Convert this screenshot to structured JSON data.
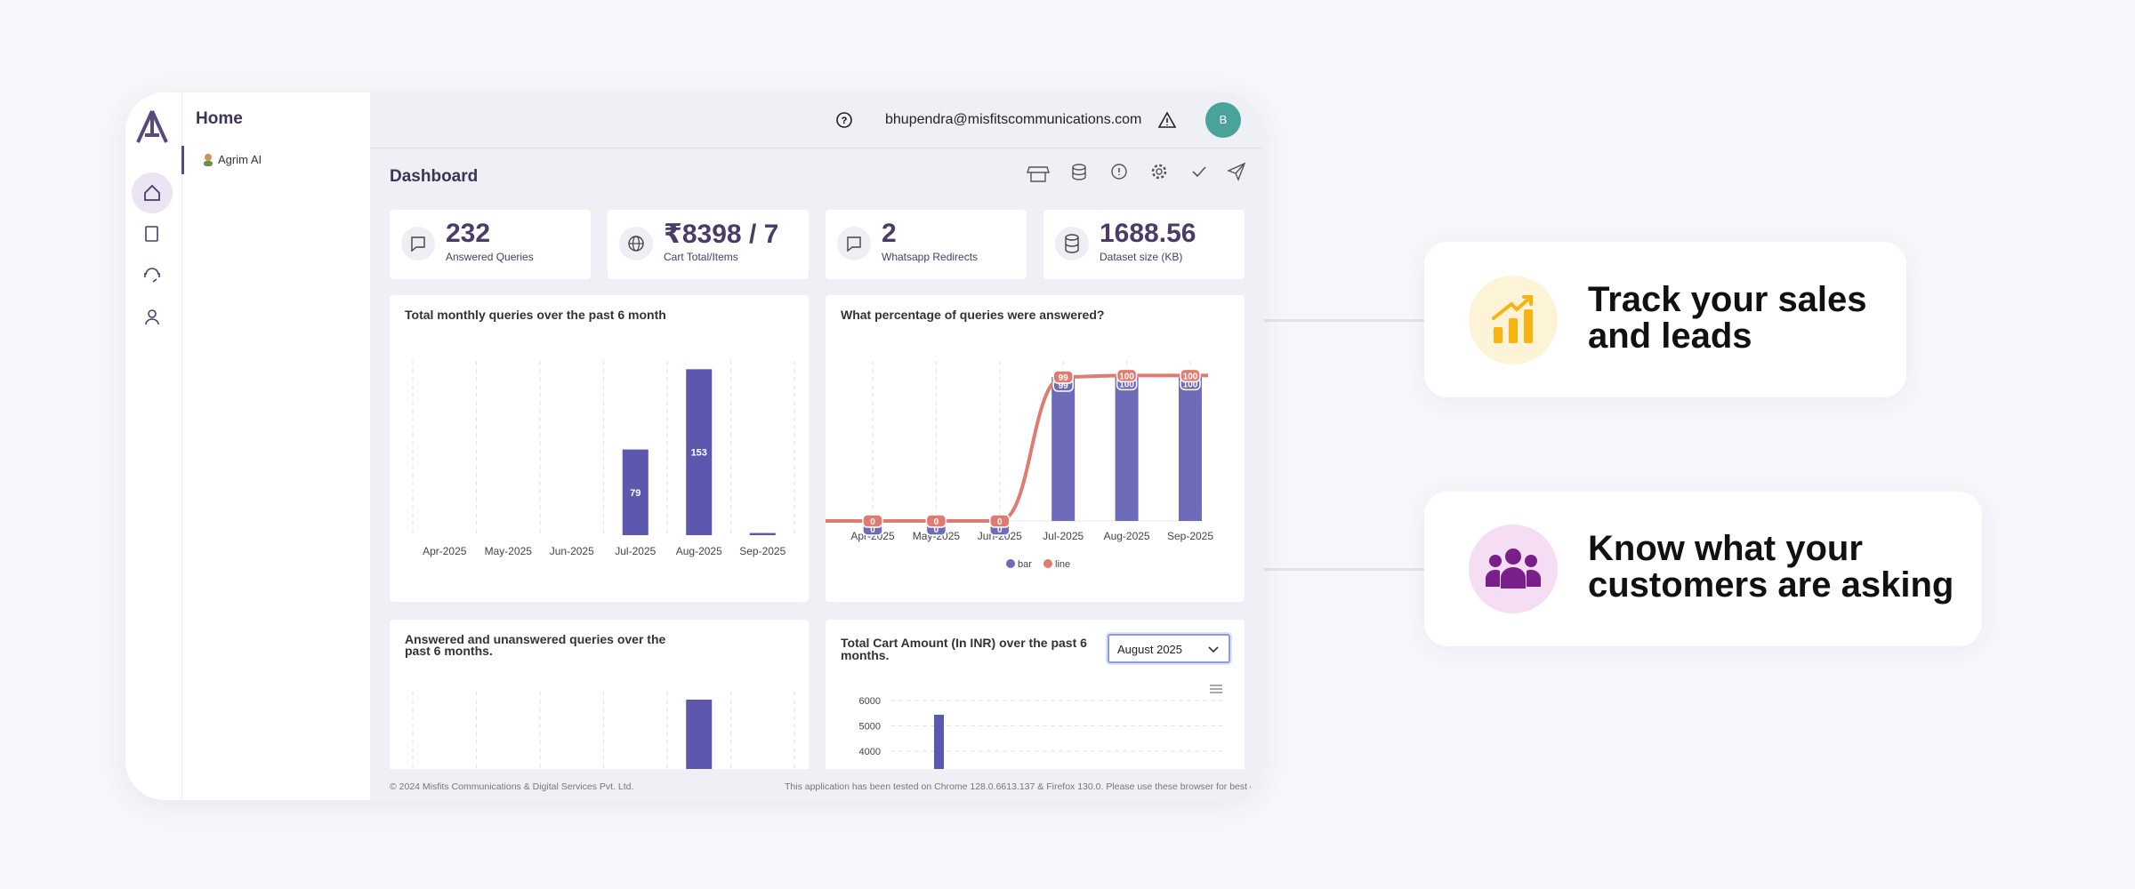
{
  "sidebar": {
    "title": "Home",
    "items": [
      "Agrim AI"
    ]
  },
  "header": {
    "email": "bhupendra@misfitscommunications.com",
    "avatar": "B"
  },
  "dashboard": {
    "title": "Dashboard",
    "stats": [
      {
        "value": "232",
        "label": "Answered Queries"
      },
      {
        "value": "₹8398 / 7",
        "label": "Cart Total/Items"
      },
      {
        "value": "2",
        "label": "Whatsapp Redirects"
      },
      {
        "value": "1688.56",
        "label": "Dataset size (KB)"
      }
    ],
    "charts": [
      {
        "type": "bar",
        "title": "Total monthly queries over the past 6 month",
        "categories": [
          "Apr-2025",
          "May-2025",
          "Jun-2025",
          "Jul-2025",
          "Aug-2025",
          "Sep-2025"
        ],
        "values": [
          0,
          0,
          0,
          79,
          153,
          2
        ],
        "color": "#5b58ae"
      },
      {
        "type": "bar_line",
        "title": "What percentage of queries were answered?",
        "categories": [
          "Apr-2025",
          "May-2025",
          "Jun-2025",
          "Jul-2025",
          "Aug-2025",
          "Sep-2025"
        ],
        "series": [
          {
            "name": "bar",
            "color": "#6e6bb9",
            "values": [
              0,
              0,
              0,
              99,
              100,
              100
            ]
          },
          {
            "name": "line",
            "color": "#e07b72",
            "values": [
              0,
              0,
              0,
              99,
              100,
              100
            ]
          }
        ]
      },
      {
        "type": "bar",
        "title": "Answered and unanswered queries over the past 6 months.",
        "values": [
          0,
          0,
          0,
          0,
          150,
          0
        ],
        "color": "#5b58ae"
      },
      {
        "type": "cart",
        "title": "Total Cart Amount (In INR) over the past 6 months.",
        "selected": "August 2025",
        "values": [
          5440
        ],
        "color": "#5b58ae",
        "ylim": [
          0,
          6000
        ],
        "yticks": [
          4000,
          5000,
          6000
        ]
      }
    ]
  },
  "footer": {
    "copyright": "© 2024 Misfits Communications & Digital Services Pvt. Ltd.",
    "notice": "This application has been tested on Chrome 128.0.6613.137 & Firefox 130.0. Please use these browser for best experience"
  },
  "features": [
    {
      "text": "Track your sales and leads"
    },
    {
      "text": "Know what your customers are asking"
    }
  ]
}
